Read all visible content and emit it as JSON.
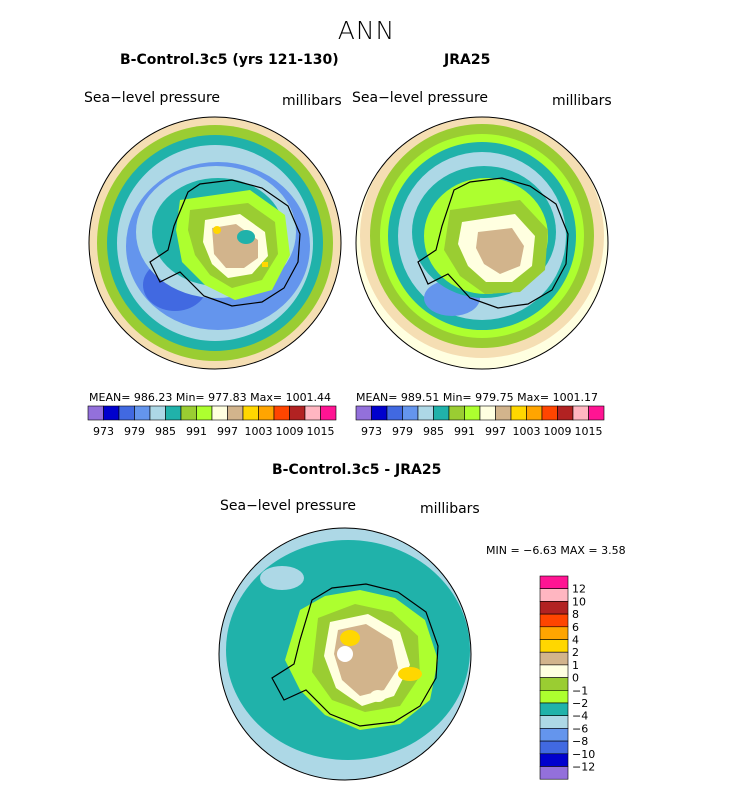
{
  "main_title": "ANN",
  "panels": {
    "model": {
      "title": "B-Control.3c5 (yrs 121-130)",
      "variable": "Sea−level pressure",
      "units": "millibars",
      "stats": "MEAN= 986.23   Min= 977.83   Max= 1001.44"
    },
    "obs": {
      "title": "JRA25",
      "variable": "Sea−level pressure",
      "units": "millibars",
      "stats": "MEAN= 989.51   Min= 979.75   Max= 1001.17"
    },
    "diff": {
      "title": "B-Control.3c5 - JRA25",
      "variable": "Sea−level pressure",
      "units": "millibars",
      "stats": "MIN =   −6.63  MAX =    3.58"
    }
  },
  "chart_data": [
    {
      "type": "heatmap",
      "projection": "polar stereographic (south pole)",
      "title": "B-Control.3c5 (yrs 121-130)",
      "variable": "Sea-level pressure",
      "units": "millibars",
      "mean": 986.23,
      "min": 977.83,
      "max": 1001.44,
      "contour_levels": [
        973,
        976,
        979,
        982,
        985,
        988,
        991,
        994,
        997,
        1000,
        1003,
        1006,
        1009,
        1012,
        1015
      ],
      "colorbar_labels": [
        "973",
        "979",
        "985",
        "991",
        "997",
        "1003",
        "1009",
        "1015"
      ],
      "colors": [
        "#9370DB",
        "#0000CD",
        "#4169E1",
        "#6495ED",
        "#ADD8E6",
        "#20B2AA",
        "#9ACD32",
        "#ADFF2F",
        "#FFFFE0",
        "#D2B48C",
        "#FFD700",
        "#FFA500",
        "#FF4500",
        "#B22222",
        "#FFB6C1",
        "#FF1493"
      ]
    },
    {
      "type": "heatmap",
      "projection": "polar stereographic (south pole)",
      "title": "JRA25",
      "variable": "Sea-level pressure",
      "units": "millibars",
      "mean": 989.51,
      "min": 979.75,
      "max": 1001.17,
      "contour_levels": [
        973,
        976,
        979,
        982,
        985,
        988,
        991,
        994,
        997,
        1000,
        1003,
        1006,
        1009,
        1012,
        1015
      ],
      "colorbar_labels": [
        "973",
        "979",
        "985",
        "991",
        "997",
        "1003",
        "1009",
        "1015"
      ],
      "colors": [
        "#9370DB",
        "#0000CD",
        "#4169E1",
        "#6495ED",
        "#ADD8E6",
        "#20B2AA",
        "#9ACD32",
        "#ADFF2F",
        "#FFFFE0",
        "#D2B48C",
        "#FFD700",
        "#FFA500",
        "#FF4500",
        "#B22222",
        "#FFB6C1",
        "#FF1493"
      ]
    },
    {
      "type": "heatmap",
      "projection": "polar stereographic (south pole)",
      "title": "B-Control.3c5 - JRA25",
      "variable": "Sea-level pressure",
      "units": "millibars",
      "min": -6.63,
      "max": 3.58,
      "contour_levels": [
        -12,
        -10,
        -8,
        -6,
        -4,
        -2,
        -1,
        0,
        1,
        2,
        4,
        6,
        8,
        10,
        12
      ],
      "colorbar_labels": [
        "12",
        "10",
        "8",
        "6",
        "4",
        "2",
        "1",
        "0",
        "−1",
        "−2",
        "−4",
        "−6",
        "−8",
        "−10",
        "−12"
      ],
      "colors": [
        "#FF1493",
        "#FFB6C1",
        "#B22222",
        "#FF4500",
        "#FFA500",
        "#FFD700",
        "#D2B48C",
        "#FFFFE0",
        "#9ACD32",
        "#ADFF2F",
        "#20B2AA",
        "#ADD8E6",
        "#6495ED",
        "#4169E1",
        "#0000CD",
        "#9370DB"
      ]
    }
  ]
}
